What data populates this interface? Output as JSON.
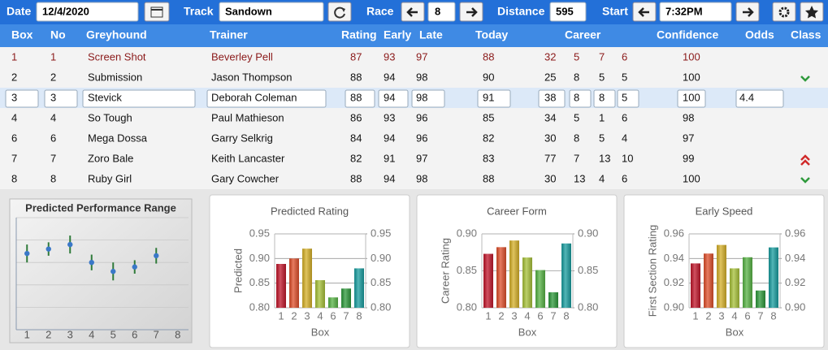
{
  "toolbar": {
    "date_label": "Date",
    "date": "12/4/2020",
    "track_label": "Track",
    "track": "Sandown",
    "race_label": "Race",
    "race": 8,
    "distance_label": "Distance",
    "distance": 595,
    "start_label": "Start",
    "start": "7:32PM"
  },
  "table": {
    "headers": [
      "Box",
      "No",
      "Greyhound",
      "Trainer",
      "Rating",
      "Early",
      "Late",
      "Today",
      "Career",
      "Confidence",
      "Odds",
      "Class"
    ],
    "rows": [
      [
        1,
        1,
        "Screen Shot",
        "Beverley Pell",
        87,
        93,
        97,
        88,
        32,
        5,
        7,
        6,
        100,
        null
      ],
      [
        2,
        2,
        "Submission",
        "Jason Thompson",
        88,
        94,
        98,
        90,
        25,
        8,
        5,
        5,
        100,
        null
      ],
      [
        3,
        3,
        "Stevick",
        "Deborah Coleman",
        88,
        94,
        98,
        91,
        38,
        8,
        8,
        5,
        100,
        4.4
      ],
      [
        4,
        4,
        "So Tough",
        "Paul Mathieson",
        86,
        93,
        96,
        85,
        34,
        5,
        1,
        6,
        98,
        null
      ],
      [
        6,
        6,
        "Mega Dossa",
        "Garry Selkrig",
        84,
        94,
        96,
        82,
        30,
        8,
        5,
        4,
        97,
        null
      ],
      [
        7,
        7,
        "Zoro Bale",
        "Keith Lancaster",
        82,
        91,
        97,
        83,
        77,
        7,
        13,
        10,
        99,
        null
      ],
      [
        8,
        8,
        "Ruby Girl",
        "Gary Cowcher",
        88,
        94,
        98,
        88,
        30,
        13,
        4,
        6,
        100,
        null
      ]
    ]
  },
  "chart_data": [
    {
      "type": "errorbar",
      "title": "Predicted Performance Range",
      "categories": [
        "1",
        "2",
        "3",
        "4",
        "5",
        "6",
        "7",
        "8"
      ],
      "values": [
        6.8,
        7.2,
        7.6,
        6.0,
        5.2,
        5.6,
        6.6,
        null
      ],
      "errors": [
        0.8,
        0.6,
        0.8,
        0.7,
        0.8,
        0.6,
        0.7,
        null
      ],
      "ylim": [
        0,
        10
      ],
      "color": "#3a78c8"
    },
    {
      "type": "bar",
      "title": "Predicted Rating",
      "ylabel": "Predicted",
      "xlabel": "Box",
      "categories": [
        "1",
        "2",
        "3",
        "4",
        "6",
        "7",
        "8"
      ],
      "values": [
        0.889,
        0.9,
        0.92,
        0.856,
        0.821,
        0.839,
        0.88
      ],
      "colors": [
        "#c2182c",
        "#e0502c",
        "#d6b12a",
        "#a8c23a",
        "#58b446",
        "#2f9a3c",
        "#1a9ea0"
      ],
      "ylim": [
        0.8,
        0.95
      ],
      "yticks": [
        {
          "value": 0.8,
          "label": "0.80"
        },
        {
          "value": 0.85,
          "label": "0.85"
        },
        {
          "value": 0.9,
          "label": "0.90"
        },
        {
          "value": 0.95,
          "label": "0.95"
        }
      ],
      "y2lim": [
        0.8,
        0.95
      ],
      "y2ticks": [
        {
          "value": 0.8,
          "label": "0.80"
        },
        {
          "value": 0.85,
          "label": "0.85"
        },
        {
          "value": 0.9,
          "label": "0.90"
        },
        {
          "value": 0.95,
          "label": "0.95"
        }
      ],
      "grid": true
    },
    {
      "type": "bar",
      "title": "Career Form",
      "ylabel": "Career Rating",
      "xlabel": "Box",
      "categories": [
        "1",
        "2",
        "3",
        "4",
        "6",
        "7",
        "8"
      ],
      "values": [
        0.873,
        0.882,
        0.891,
        0.868,
        0.851,
        0.821,
        0.887
      ],
      "colors": [
        "#c2182c",
        "#e0502c",
        "#d6b12a",
        "#a8c23a",
        "#58b446",
        "#2f9a3c",
        "#1a9ea0"
      ],
      "ylim": [
        0.8,
        0.9
      ],
      "yticks": [
        {
          "value": 0.8,
          "label": "0.80"
        },
        {
          "value": 0.85,
          "label": "0.85"
        },
        {
          "value": 0.9,
          "label": "0.90"
        }
      ],
      "y2lim": [
        0.8,
        0.9
      ],
      "y2ticks": [
        {
          "value": 0.8,
          "label": "0.80"
        },
        {
          "value": 0.85,
          "label": "0.85"
        },
        {
          "value": 0.9,
          "label": "0.90"
        }
      ],
      "grid": true
    },
    {
      "type": "bar",
      "title": "Early Speed",
      "ylabel": "First Section Rating",
      "xlabel": "Box",
      "categories": [
        "1",
        "2",
        "3",
        "4",
        "6",
        "7",
        "8"
      ],
      "values": [
        0.936,
        0.944,
        0.951,
        0.932,
        0.941,
        0.914,
        0.949
      ],
      "colors": [
        "#c2182c",
        "#e0502c",
        "#d6b12a",
        "#a8c23a",
        "#58b446",
        "#2f9a3c",
        "#1a9ea0"
      ],
      "ylim": [
        0.9,
        0.96
      ],
      "yticks": [
        {
          "value": 0.9,
          "label": "0.90"
        },
        {
          "value": 0.92,
          "label": "0.92"
        },
        {
          "value": 0.94,
          "label": "0.94"
        },
        {
          "value": 0.96,
          "label": "0.96"
        }
      ],
      "y2lim": [
        0.9,
        0.96
      ],
      "y2ticks": [
        {
          "value": 0.9,
          "label": "0.90"
        },
        {
          "value": 0.92,
          "label": "0.92"
        },
        {
          "value": 0.94,
          "label": "0.94"
        },
        {
          "value": 0.96,
          "label": "0.96"
        }
      ],
      "grid": true
    }
  ]
}
